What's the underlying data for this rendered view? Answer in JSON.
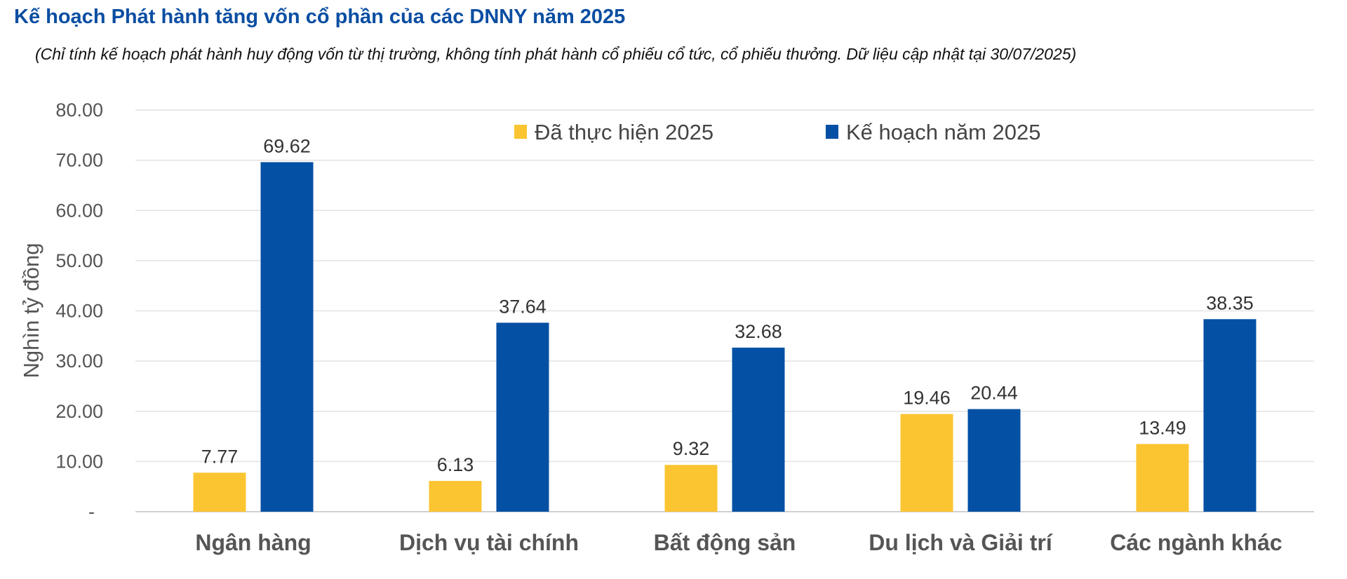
{
  "chart_data": {
    "type": "bar",
    "title": "Kế hoạch Phát hành tăng vốn cổ phần của các DNNY năm 2025",
    "subtitle": "(Chỉ tính kế hoạch phát hành huy động vốn từ thị trường, không tính phát hành cổ phiếu cổ tức, cổ phiếu thưởng. Dữ liệu cập nhật tại 30/07/2025)",
    "xlabel": "",
    "ylabel": "Nghìn tỷ đồng",
    "ylim": [
      0,
      80
    ],
    "yticks": [
      0,
      10,
      20,
      30,
      40,
      50,
      60,
      70,
      80
    ],
    "ytick_labels": [
      "-",
      "10.00",
      "20.00",
      "30.00",
      "40.00",
      "50.00",
      "60.00",
      "70.00",
      "80.00"
    ],
    "grid": true,
    "legend_position": "top-center",
    "categories": [
      "Ngân hàng",
      "Dịch vụ tài chính",
      "Bất động sản",
      "Du lịch và Giải trí",
      "Các ngành khác"
    ],
    "series": [
      {
        "name": "Đã thực hiện 2025",
        "color": "#FBC531",
        "values": [
          7.77,
          6.13,
          9.32,
          19.46,
          13.49
        ],
        "labels": [
          "7.77",
          "6.13",
          "9.32",
          "19.46",
          "13.49"
        ]
      },
      {
        "name": "Kế hoạch năm 2025",
        "color": "#0450A4",
        "values": [
          69.62,
          37.64,
          32.68,
          20.44,
          38.35
        ],
        "labels": [
          "69.62",
          "37.64",
          "32.68",
          "20.44",
          "38.35"
        ]
      }
    ]
  }
}
